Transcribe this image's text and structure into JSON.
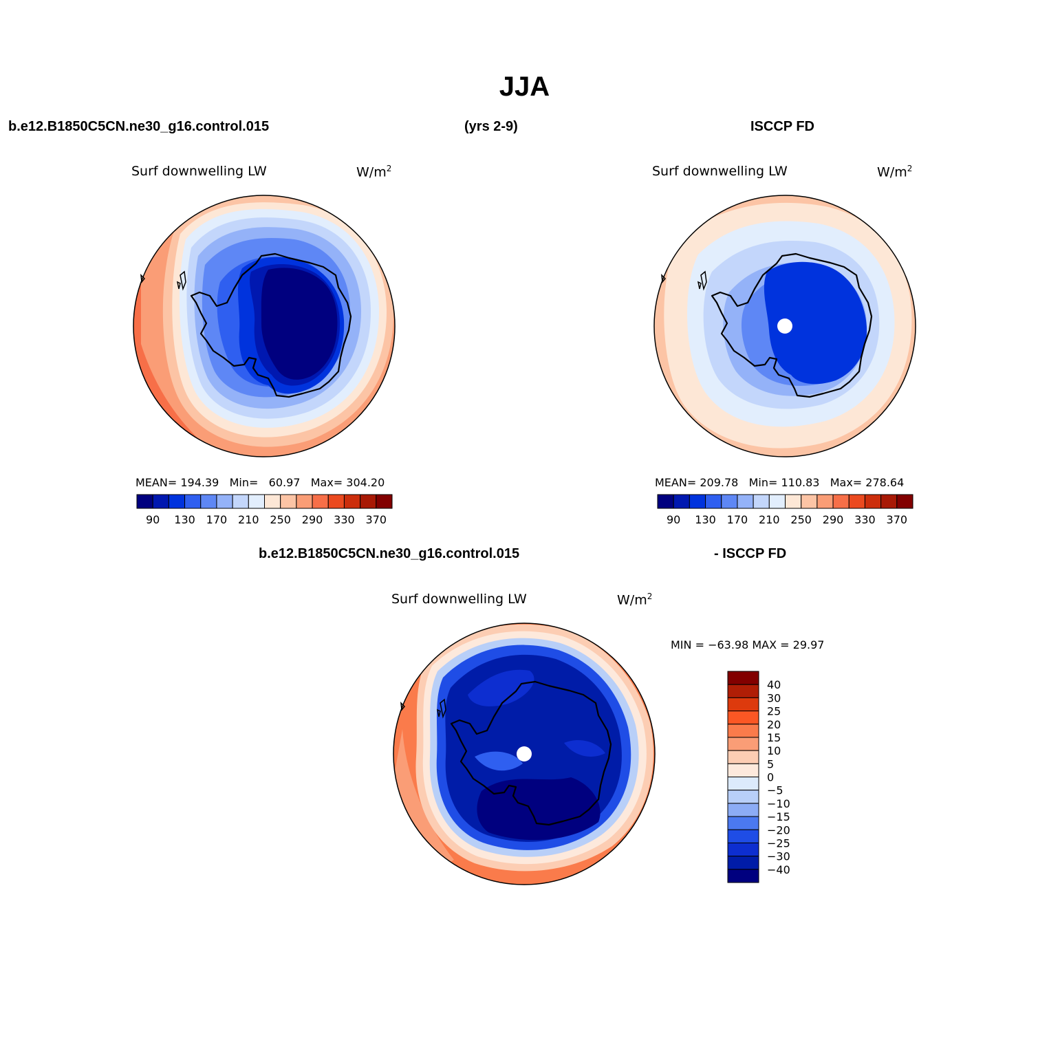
{
  "figure": {
    "title": "JJA",
    "case_name": "b.e12.B1850C5CN.ne30_g16.control.015",
    "years": "(yrs 2-9)",
    "obs_name": "ISCCP FD",
    "diff_case_name": "b.e12.B1850C5CN.ne30_g16.control.015",
    "diff_obs_name": "- ISCCP FD"
  },
  "panels": [
    {
      "id": "model",
      "variable": "Surf downwelling LW",
      "units_base": "W/m",
      "units_exp": "2",
      "stats": {
        "mean_label": "MEAN=",
        "mean": "194.39",
        "min_label": "Min=",
        "min": "60.97",
        "max_label": "Max=",
        "max": "304.20"
      }
    },
    {
      "id": "obs",
      "variable": "Surf downwelling LW",
      "units_base": "W/m",
      "units_exp": "2",
      "stats": {
        "mean_label": "MEAN=",
        "mean": "209.78",
        "min_label": "Min=",
        "min": "110.83",
        "max_label": "Max=",
        "max": "278.64"
      }
    },
    {
      "id": "diff",
      "variable": "Surf downwelling LW",
      "units_base": "W/m",
      "units_exp": "2",
      "minmax_text": "MIN = −63.98 MAX =   29.97"
    }
  ],
  "colorbar_abs": {
    "labels": [
      "90",
      "130",
      "170",
      "210",
      "250",
      "290",
      "330",
      "370"
    ],
    "colors": [
      "#00007f",
      "#0018b0",
      "#0033dd",
      "#2f5ff0",
      "#5e87f5",
      "#94b2f8",
      "#c3d6fb",
      "#e2eefd",
      "#fde7d6",
      "#fcc4a5",
      "#fa9d76",
      "#f76f48",
      "#eb4a1f",
      "#cc2e0c",
      "#a81905",
      "#820000"
    ]
  },
  "colorbar_diff": {
    "labels": [
      "40",
      "30",
      "25",
      "20",
      "15",
      "10",
      "5",
      "0",
      "−5",
      "−10",
      "−15",
      "−20",
      "−25",
      "−30",
      "−40"
    ],
    "colors": [
      "#820000",
      "#b01e06",
      "#dd3a0d",
      "#fb5724",
      "#fa7b4b",
      "#fa9d76",
      "#fccdb3",
      "#fde9dc",
      "#dceafb",
      "#b8cff8",
      "#8cacf5",
      "#4b79f0",
      "#1f4de6",
      "#0d2ed0",
      "#001ca8",
      "#00007f"
    ]
  }
}
